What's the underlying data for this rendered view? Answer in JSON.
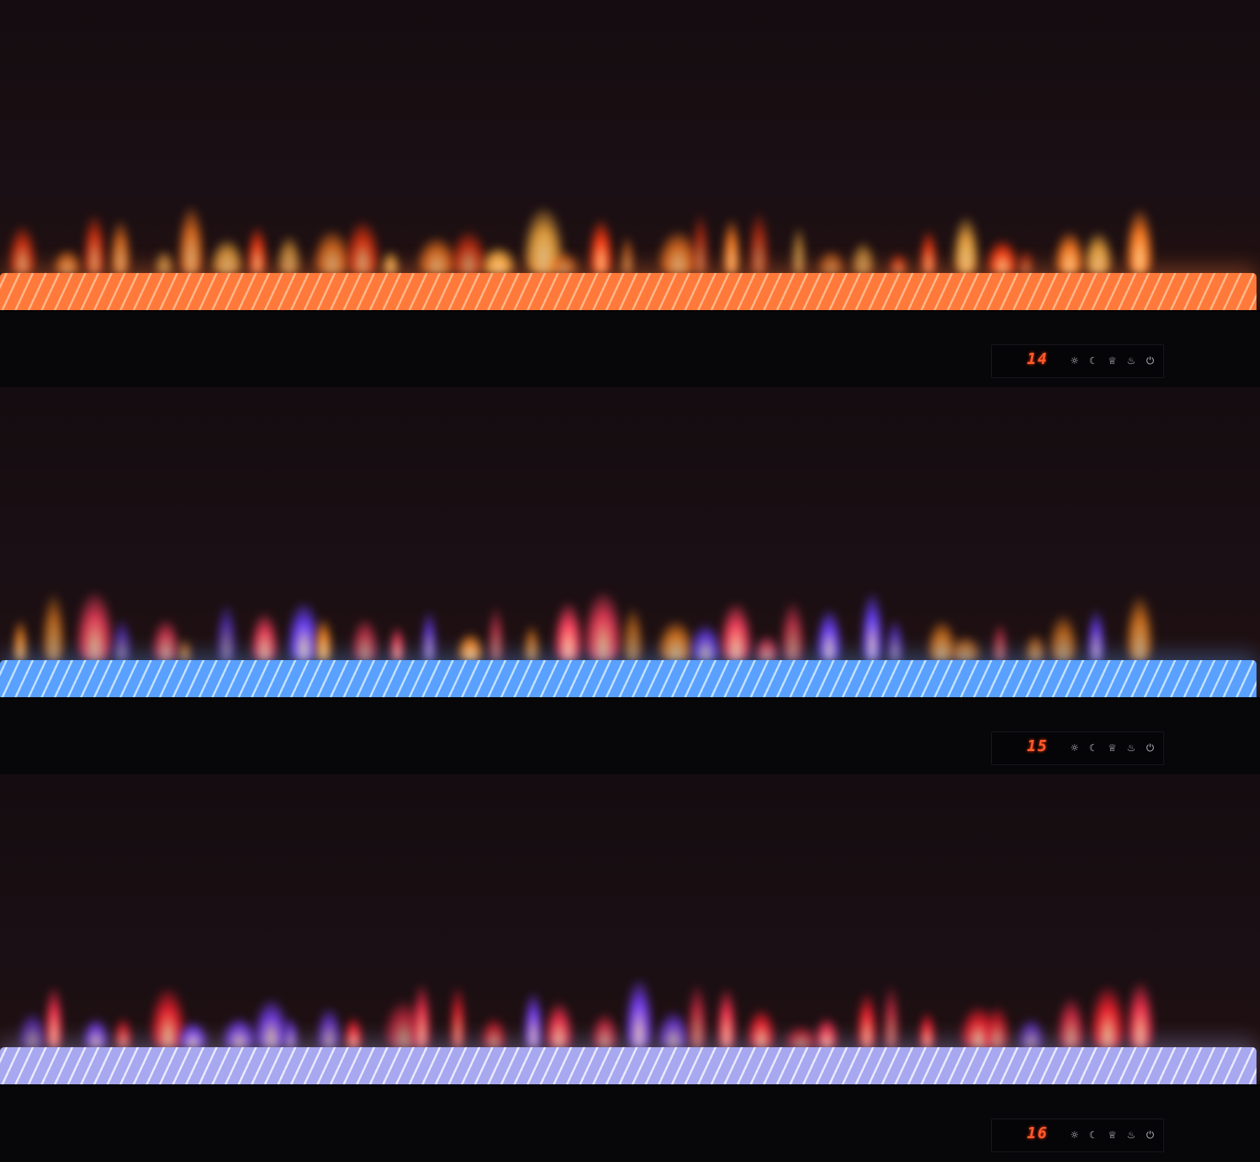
{
  "units": [
    {
      "name": "unit-orange",
      "temperature": "14",
      "flame_colors": [
        "#ff3a10",
        "#ff7a20",
        "#ffb040"
      ],
      "bed_color": "#ff7a3a",
      "bed_highlight": "#ffb68a"
    },
    {
      "name": "unit-blue",
      "temperature": "15",
      "flame_colors": [
        "#ff8a20",
        "#ff4060",
        "#6a40ff"
      ],
      "bed_color": "#5aa0ff",
      "bed_highlight": "#bfe0ff"
    },
    {
      "name": "unit-lilac",
      "temperature": "16",
      "flame_colors": [
        "#ff2030",
        "#ff3050",
        "#7a40ff"
      ],
      "bed_color": "#a8a8f0",
      "bed_highlight": "#e8e8ff"
    }
  ],
  "controls": {
    "icons": [
      "brightness-icon",
      "timer-icon",
      "crown-flame-icon",
      "flame-icon",
      "power-icon"
    ],
    "glyphs": [
      "☼",
      "☾",
      "♕",
      "♨",
      "⏻"
    ]
  },
  "display_color": "#ff5a2a"
}
